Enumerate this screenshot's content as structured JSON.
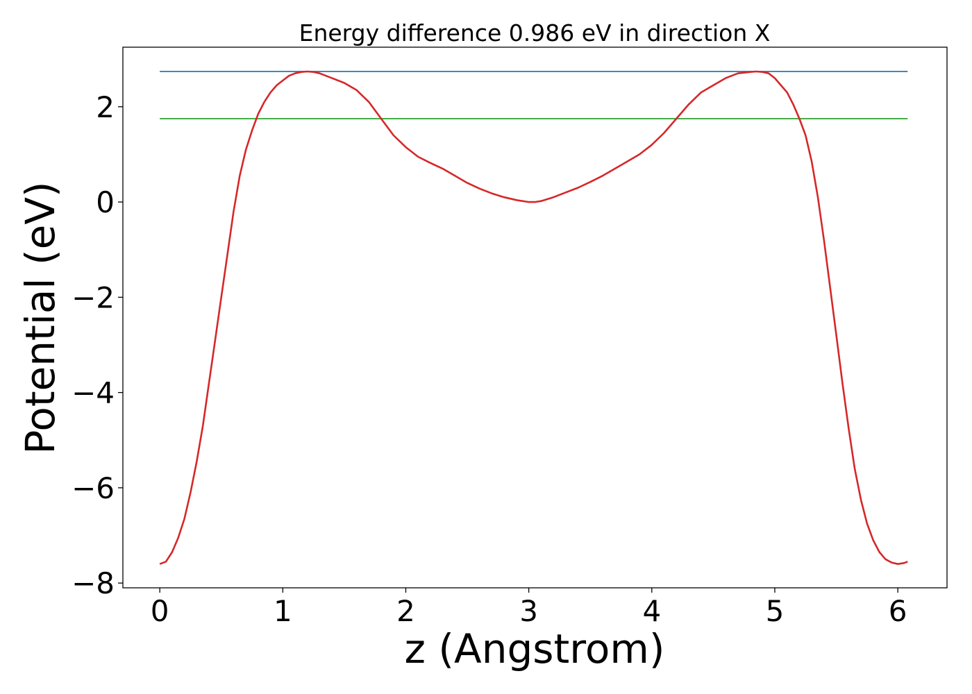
{
  "chart_data": {
    "type": "line",
    "title": "Energy difference 0.986 eV in direction X",
    "xlabel": "z (Angstrom)",
    "ylabel": "Potential (eV)",
    "xlim": [
      -0.3,
      6.4
    ],
    "ylim": [
      -8.1,
      3.25
    ],
    "xticks": [
      0,
      1,
      2,
      3,
      4,
      5,
      6
    ],
    "xtick_labels": [
      "0",
      "1",
      "2",
      "3",
      "4",
      "5",
      "6"
    ],
    "yticks": [
      -8,
      -6,
      -4,
      -2,
      0,
      2
    ],
    "ytick_labels": [
      "−8",
      "−6",
      "−4",
      "−2",
      "0",
      "2"
    ],
    "grid": false,
    "series": [
      {
        "color": "#1f77b4",
        "x": [
          0,
          6.08
        ],
        "values": [
          2.74,
          2.74
        ]
      },
      {
        "color": "#2ca02c",
        "x": [
          0,
          6.08
        ],
        "values": [
          1.75,
          1.75
        ]
      },
      {
        "color": "#d62728",
        "x": [
          0,
          0.05,
          0.1,
          0.15,
          0.2,
          0.25,
          0.3,
          0.35,
          0.4,
          0.45,
          0.5,
          0.55,
          0.6,
          0.65,
          0.7,
          0.75,
          0.8,
          0.85,
          0.9,
          0.95,
          1.0,
          1.05,
          1.1,
          1.15,
          1.2,
          1.25,
          1.3,
          1.4,
          1.5,
          1.6,
          1.7,
          1.8,
          1.9,
          2.0,
          2.1,
          2.2,
          2.3,
          2.4,
          2.5,
          2.6,
          2.7,
          2.8,
          2.9,
          3.0,
          3.05,
          3.1,
          3.2,
          3.3,
          3.4,
          3.5,
          3.6,
          3.7,
          3.8,
          3.9,
          4.0,
          4.1,
          4.2,
          4.3,
          4.4,
          4.5,
          4.6,
          4.7,
          4.8,
          4.85,
          4.9,
          4.95,
          5.0,
          5.05,
          5.1,
          5.15,
          5.2,
          5.25,
          5.3,
          5.35,
          5.4,
          5.45,
          5.5,
          5.55,
          5.6,
          5.65,
          5.7,
          5.75,
          5.8,
          5.85,
          5.9,
          5.95,
          6.0,
          6.05,
          6.08
        ],
        "values": [
          -7.6,
          -7.55,
          -7.35,
          -7.05,
          -6.65,
          -6.1,
          -5.45,
          -4.7,
          -3.8,
          -2.9,
          -2.0,
          -1.1,
          -0.2,
          0.55,
          1.1,
          1.5,
          1.85,
          2.1,
          2.3,
          2.45,
          2.55,
          2.65,
          2.7,
          2.73,
          2.74,
          2.73,
          2.7,
          2.6,
          2.5,
          2.35,
          2.1,
          1.75,
          1.4,
          1.15,
          0.95,
          0.82,
          0.7,
          0.55,
          0.4,
          0.28,
          0.18,
          0.1,
          0.04,
          0.0,
          0.0,
          0.02,
          0.1,
          0.2,
          0.3,
          0.42,
          0.55,
          0.7,
          0.85,
          1.0,
          1.2,
          1.45,
          1.75,
          2.05,
          2.3,
          2.45,
          2.6,
          2.7,
          2.73,
          2.74,
          2.73,
          2.7,
          2.6,
          2.45,
          2.3,
          2.05,
          1.75,
          1.4,
          0.85,
          0.1,
          -0.8,
          -1.8,
          -2.8,
          -3.8,
          -4.75,
          -5.6,
          -6.25,
          -6.75,
          -7.1,
          -7.35,
          -7.5,
          -7.57,
          -7.6,
          -7.58,
          -7.55
        ]
      }
    ]
  }
}
